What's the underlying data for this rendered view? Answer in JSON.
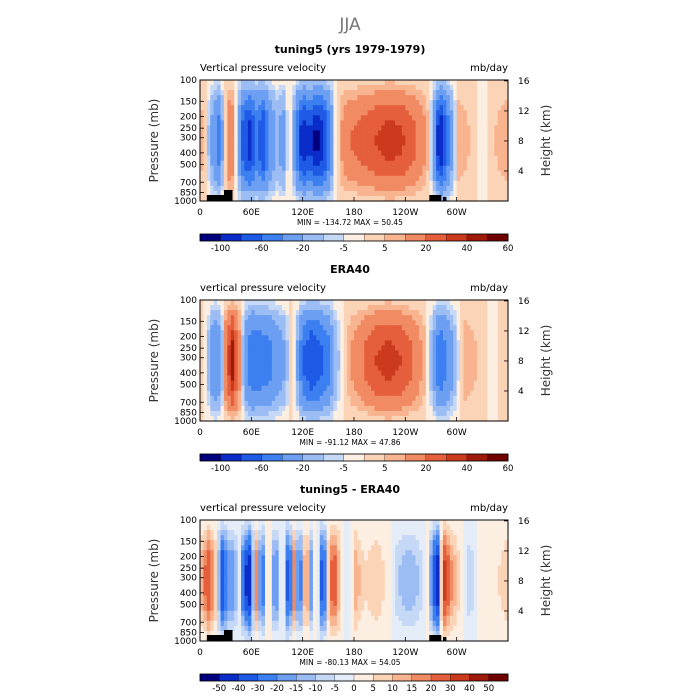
{
  "figure_title": "JJA",
  "chart_data": [
    {
      "type": "heatmap",
      "title": "tuning5 (yrs 1979-1979)",
      "left_string": "Vertical pressure velocity",
      "right_string": "mb/day",
      "xlabel": "",
      "ylabel": "Pressure (mb)",
      "right_ylabel": "Height (km)",
      "x_ticks": [
        "0",
        "60E",
        "120E",
        "180",
        "120W",
        "60W"
      ],
      "y_ticks": [
        "100",
        "150",
        "200",
        "250",
        "300",
        "400",
        "500",
        "700",
        "850",
        "1000"
      ],
      "right_ticks": [
        "16",
        "12",
        "8",
        "4"
      ],
      "min_max_text": "MIN = -134.72   MAX =  50.45",
      "colorbar_labels": [
        "-100",
        "-60",
        "-20",
        "-5",
        "5",
        "20",
        "40",
        "60"
      ],
      "longitude_profile": [
        {
          "lon": 0,
          "value": 10
        },
        {
          "lon": 8,
          "value": -3
        },
        {
          "lon": 15,
          "value": -30
        },
        {
          "lon": 22,
          "value": -50
        },
        {
          "lon": 30,
          "value": 5
        },
        {
          "lon": 36,
          "value": 25
        },
        {
          "lon": 42,
          "value": 0
        },
        {
          "lon": 50,
          "value": -70
        },
        {
          "lon": 58,
          "value": -90
        },
        {
          "lon": 66,
          "value": -60
        },
        {
          "lon": 74,
          "value": -80
        },
        {
          "lon": 82,
          "value": -40
        },
        {
          "lon": 90,
          "value": -20
        },
        {
          "lon": 98,
          "value": -30
        },
        {
          "lon": 104,
          "value": 5
        },
        {
          "lon": 108,
          "value": -10
        },
        {
          "lon": 114,
          "value": -60
        },
        {
          "lon": 120,
          "value": -100
        },
        {
          "lon": 128,
          "value": -80
        },
        {
          "lon": 136,
          "value": -110
        },
        {
          "lon": 144,
          "value": -90
        },
        {
          "lon": 152,
          "value": -50
        },
        {
          "lon": 158,
          "value": -5
        },
        {
          "lon": 166,
          "value": 12
        },
        {
          "lon": 176,
          "value": 20
        },
        {
          "lon": 190,
          "value": 25
        },
        {
          "lon": 205,
          "value": 30
        },
        {
          "lon": 220,
          "value": 35
        },
        {
          "lon": 235,
          "value": 32
        },
        {
          "lon": 248,
          "value": 25
        },
        {
          "lon": 260,
          "value": 15
        },
        {
          "lon": 268,
          "value": 5
        },
        {
          "lon": 274,
          "value": -40
        },
        {
          "lon": 280,
          "value": -110
        },
        {
          "lon": 288,
          "value": -60
        },
        {
          "lon": 296,
          "value": -20
        },
        {
          "lon": 302,
          "value": 10
        },
        {
          "lon": 315,
          "value": 5
        },
        {
          "lon": 330,
          "value": -3
        },
        {
          "lon": 345,
          "value": 5
        },
        {
          "lon": 360,
          "value": 10
        }
      ]
    },
    {
      "type": "heatmap",
      "title": "ERA40",
      "left_string": "vertical pressure velocity",
      "right_string": "mb/day",
      "xlabel": "",
      "ylabel": "Pressure (mb)",
      "right_ylabel": "Height (km)",
      "x_ticks": [
        "0",
        "60E",
        "120E",
        "180",
        "120W",
        "60W"
      ],
      "y_ticks": [
        "100",
        "150",
        "200",
        "250",
        "300",
        "400",
        "500",
        "700",
        "850",
        "1000"
      ],
      "right_ticks": [
        "16",
        "12",
        "8",
        "4"
      ],
      "min_max_text": "MIN = -91.12   MAX =  47.86",
      "colorbar_labels": [
        "-100",
        "-60",
        "-20",
        "-5",
        "5",
        "20",
        "40",
        "60"
      ],
      "longitude_profile": [
        {
          "lon": 0,
          "value": 5
        },
        {
          "lon": 8,
          "value": -5
        },
        {
          "lon": 16,
          "value": -40
        },
        {
          "lon": 24,
          "value": -30
        },
        {
          "lon": 30,
          "value": 20
        },
        {
          "lon": 38,
          "value": 45
        },
        {
          "lon": 46,
          "value": 15
        },
        {
          "lon": 54,
          "value": -40
        },
        {
          "lon": 62,
          "value": -60
        },
        {
          "lon": 72,
          "value": -55
        },
        {
          "lon": 82,
          "value": -45
        },
        {
          "lon": 92,
          "value": -30
        },
        {
          "lon": 100,
          "value": -20
        },
        {
          "lon": 106,
          "value": 5
        },
        {
          "lon": 112,
          "value": -10
        },
        {
          "lon": 120,
          "value": -60
        },
        {
          "lon": 130,
          "value": -80
        },
        {
          "lon": 140,
          "value": -70
        },
        {
          "lon": 150,
          "value": -50
        },
        {
          "lon": 158,
          "value": -20
        },
        {
          "lon": 165,
          "value": -3
        },
        {
          "lon": 175,
          "value": 10
        },
        {
          "lon": 190,
          "value": 20
        },
        {
          "lon": 205,
          "value": 30
        },
        {
          "lon": 220,
          "value": 35
        },
        {
          "lon": 235,
          "value": 30
        },
        {
          "lon": 250,
          "value": 20
        },
        {
          "lon": 262,
          "value": 8
        },
        {
          "lon": 272,
          "value": -20
        },
        {
          "lon": 280,
          "value": -60
        },
        {
          "lon": 290,
          "value": -40
        },
        {
          "lon": 300,
          "value": -10
        },
        {
          "lon": 310,
          "value": 10
        },
        {
          "lon": 325,
          "value": 5
        },
        {
          "lon": 340,
          "value": -3
        },
        {
          "lon": 360,
          "value": 5
        }
      ]
    },
    {
      "type": "heatmap",
      "title": "tuning5 - ERA40",
      "left_string": "vertical pressure velocity",
      "right_string": "mb/day",
      "xlabel": "",
      "ylabel": "Pressure (mb)",
      "right_ylabel": "Height (km)",
      "x_ticks": [
        "0",
        "60E",
        "120E",
        "180",
        "120W",
        "60W"
      ],
      "y_ticks": [
        "100",
        "150",
        "200",
        "250",
        "300",
        "400",
        "500",
        "700",
        "850",
        "1000"
      ],
      "right_ticks": [
        "16",
        "12",
        "8",
        "4"
      ],
      "min_max_text": "MIN = -80.13   MAX =  54.05",
      "colorbar_labels": [
        "-50",
        "-40",
        "-30",
        "-20",
        "-15",
        "-10",
        "-5",
        "0",
        "5",
        "10",
        "15",
        "20",
        "30",
        "40",
        "50"
      ],
      "longitude_profile": [
        {
          "lon": 0,
          "value": 10
        },
        {
          "lon": 10,
          "value": 30
        },
        {
          "lon": 18,
          "value": 10
        },
        {
          "lon": 26,
          "value": -40
        },
        {
          "lon": 34,
          "value": -20
        },
        {
          "lon": 40,
          "value": -20
        },
        {
          "lon": 46,
          "value": 0
        },
        {
          "lon": 52,
          "value": -40
        },
        {
          "lon": 58,
          "value": -50
        },
        {
          "lon": 66,
          "value": 20
        },
        {
          "lon": 72,
          "value": -40
        },
        {
          "lon": 80,
          "value": 15
        },
        {
          "lon": 88,
          "value": -30
        },
        {
          "lon": 96,
          "value": 10
        },
        {
          "lon": 104,
          "value": -50
        },
        {
          "lon": 110,
          "value": 20
        },
        {
          "lon": 116,
          "value": -40
        },
        {
          "lon": 124,
          "value": 30
        },
        {
          "lon": 130,
          "value": -20
        },
        {
          "lon": 136,
          "value": 15
        },
        {
          "lon": 144,
          "value": -50
        },
        {
          "lon": 150,
          "value": 10
        },
        {
          "lon": 156,
          "value": 30
        },
        {
          "lon": 164,
          "value": 10
        },
        {
          "lon": 172,
          "value": -10
        },
        {
          "lon": 182,
          "value": 15
        },
        {
          "lon": 192,
          "value": 5
        },
        {
          "lon": 205,
          "value": 10
        },
        {
          "lon": 220,
          "value": 3
        },
        {
          "lon": 232,
          "value": -10
        },
        {
          "lon": 244,
          "value": -15
        },
        {
          "lon": 256,
          "value": -10
        },
        {
          "lon": 266,
          "value": 5
        },
        {
          "lon": 272,
          "value": -30
        },
        {
          "lon": 278,
          "value": -50
        },
        {
          "lon": 284,
          "value": 40
        },
        {
          "lon": 292,
          "value": 20
        },
        {
          "lon": 300,
          "value": 10
        },
        {
          "lon": 315,
          "value": -10
        },
        {
          "lon": 330,
          "value": 5
        },
        {
          "lon": 345,
          "value": 3
        },
        {
          "lon": 360,
          "value": 10
        }
      ]
    }
  ],
  "colors": {
    "background": "#ffffff",
    "title_gray": "#777777",
    "topography": "#000000",
    "palette": [
      "#00007f",
      "#0a2cc8",
      "#1e5ae6",
      "#3c7ff0",
      "#6c9ef2",
      "#9cbcf4",
      "#c5d8f6",
      "#e4ecf8",
      "#fcefe2",
      "#fbd3b6",
      "#f8b38f",
      "#f18b63",
      "#e55f3c",
      "#cc3a1e",
      "#a01a0c",
      "#700000"
    ]
  }
}
